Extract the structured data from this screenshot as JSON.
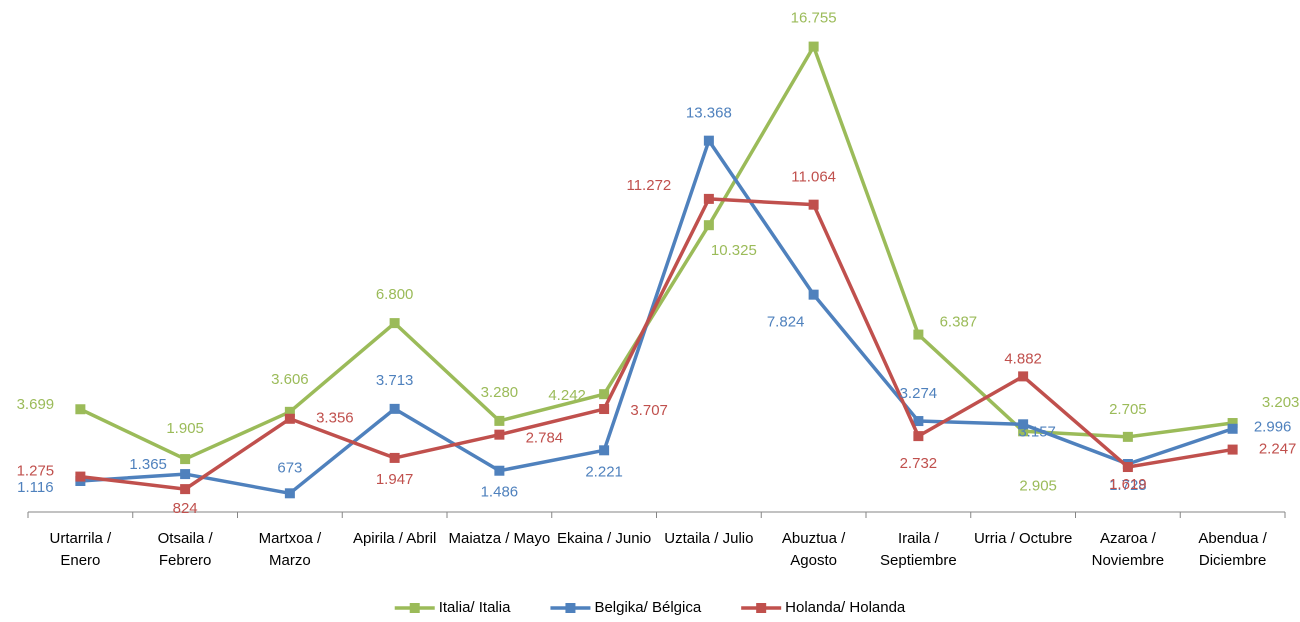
{
  "chart_data": {
    "type": "line",
    "categories": [
      "Urtarrila / Enero",
      "Otsaila / Febrero",
      "Martxoa / Marzo",
      "Apirila / Abril",
      "Maiatza / Mayo",
      "Ekaina / Junio",
      "Uztaila / Julio",
      "Abuztua / Agosto",
      "Iraila / Septiembre",
      "Urria / Octubre",
      "Azaroa / Noviembre",
      "Abendua / Diciembre"
    ],
    "series": [
      {
        "name": "Italia/ Italia",
        "color": "#9bbb59",
        "values": [
          3699,
          1905,
          3606,
          6800,
          3280,
          4242,
          10325,
          16755,
          6387,
          2905,
          2705,
          3203
        ],
        "value_labels": [
          "3.699",
          "1.905",
          "3.606",
          "6.800",
          "3.280",
          "4.242",
          "10.325",
          "16.755",
          "6.387",
          "2.905",
          "2.705",
          "3.203"
        ]
      },
      {
        "name": "Belgika/ Bélgica",
        "color": "#4f81bd",
        "values": [
          1116,
          1365,
          673,
          3713,
          1486,
          2221,
          13368,
          7824,
          3274,
          3157,
          1728,
          2996
        ],
        "value_labels": [
          "1.116",
          "1.365",
          "673",
          "3.713",
          "1.486",
          "2.221",
          "13.368",
          "7.824",
          "3.274",
          "3.157",
          "1.728",
          "2.996"
        ]
      },
      {
        "name": "Holanda/ Holanda",
        "color": "#c0504d",
        "values": [
          1275,
          824,
          3356,
          1947,
          2784,
          3707,
          11272,
          11064,
          2732,
          4882,
          1619,
          2247
        ],
        "value_labels": [
          "1.275",
          "824",
          "3.356",
          "1.947",
          "2.784",
          "3.707",
          "11.272",
          "11.064",
          "2.732",
          "4.882",
          "1.619",
          "2.247"
        ]
      }
    ],
    "ylim": [
      0,
      18000
    ],
    "legend": "bottom"
  }
}
